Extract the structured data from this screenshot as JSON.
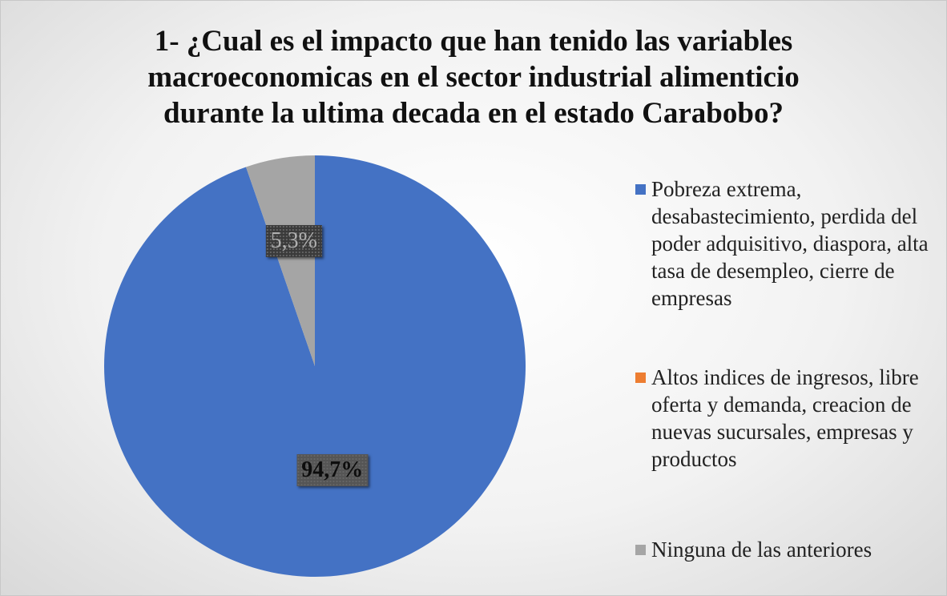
{
  "chart_data": {
    "type": "pie",
    "title": "1- ¿Cual es el impacto que han tenido las variables macroeconomicas en el sector industrial alimenticio durante la ultima decada en el estado Carabobo?",
    "categories": [
      "Pobreza extrema, desabastecimiento, perdida del poder adquisitivo, diaspora, alta tasa de desempleo, cierre de empresas",
      "Altos indices de ingresos, libre oferta y demanda, creacion de nuevas sucursales, empresas y productos",
      "Ninguna de las anteriores"
    ],
    "values": [
      94.7,
      0,
      5.3
    ],
    "value_labels": [
      "94,7%",
      null,
      "5,3%"
    ],
    "colors": [
      "#4472c4",
      "#ed7d31",
      "#a5a5a5"
    ],
    "legend": "right"
  }
}
